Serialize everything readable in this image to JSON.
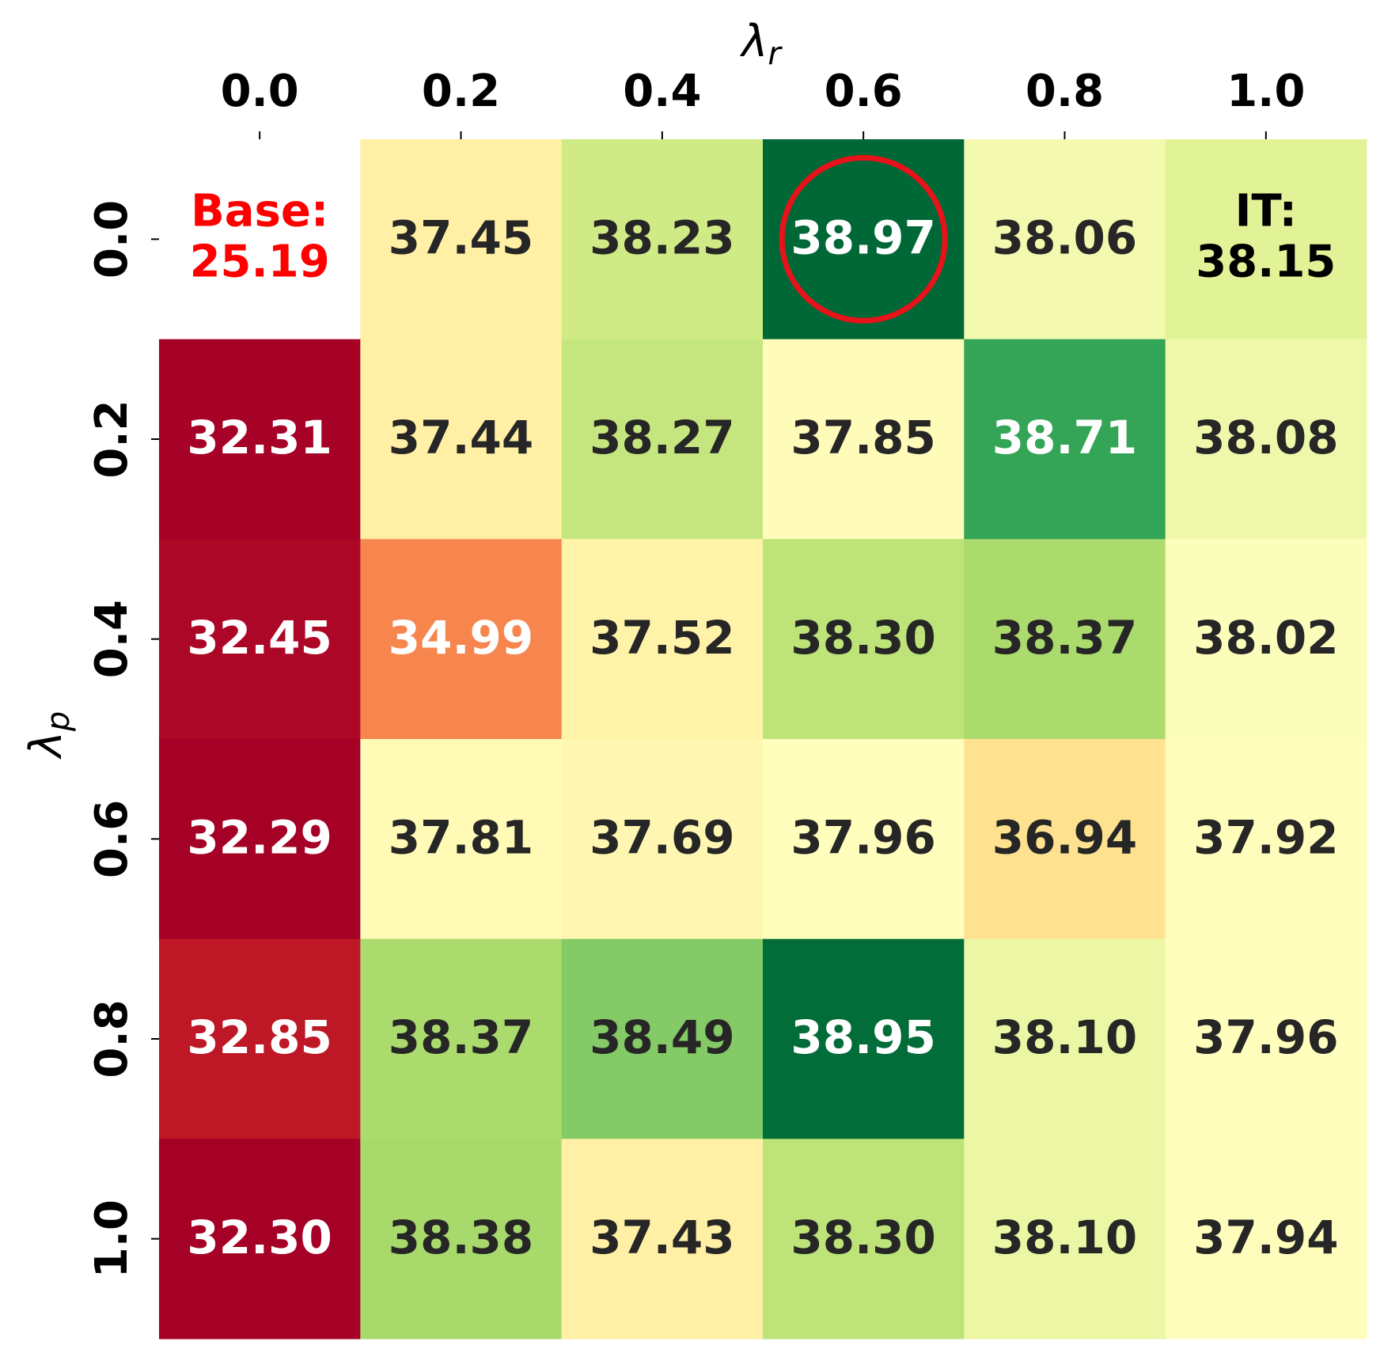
{
  "chart_data": {
    "type": "heatmap",
    "xlabel": {
      "text": "λ",
      "subscript": "r"
    },
    "ylabel": {
      "text": "λ",
      "subscript": "p"
    },
    "xcategories": [
      "0.0",
      "0.2",
      "0.4",
      "0.6",
      "0.8",
      "1.0"
    ],
    "ycategories": [
      "0.0",
      "0.2",
      "0.4",
      "0.6",
      "0.8",
      "1.0"
    ],
    "values": [
      [
        null,
        37.45,
        38.23,
        38.97,
        38.06,
        38.15
      ],
      [
        32.31,
        37.44,
        38.27,
        37.85,
        38.71,
        38.08
      ],
      [
        32.45,
        34.99,
        37.52,
        38.3,
        38.37,
        38.02
      ],
      [
        32.29,
        37.81,
        37.69,
        37.96,
        36.94,
        37.92
      ],
      [
        32.85,
        38.37,
        38.49,
        38.95,
        38.1,
        37.96
      ],
      [
        32.3,
        38.38,
        37.43,
        38.3,
        38.1,
        37.94
      ]
    ],
    "value_labels": [
      [
        null,
        "37.45",
        "38.23",
        "38.97",
        "38.06",
        "38.15"
      ],
      [
        "32.31",
        "37.44",
        "38.27",
        "37.85",
        "38.71",
        "38.08"
      ],
      [
        "32.45",
        "34.99",
        "37.52",
        "38.30",
        "38.37",
        "38.02"
      ],
      [
        "32.29",
        "37.81",
        "37.69",
        "37.96",
        "36.94",
        "37.92"
      ],
      [
        "32.85",
        "38.37",
        "38.49",
        "38.95",
        "38.10",
        "37.96"
      ],
      [
        "32.30",
        "38.38",
        "37.43",
        "38.30",
        "38.10",
        "37.94"
      ]
    ],
    "annotations": [
      {
        "text": "Base:",
        "value": 25.19,
        "x": "0.0",
        "y": "0.0",
        "color": "#ff0000"
      },
      {
        "text": "IT:",
        "x": "1.0",
        "y": "0.0",
        "color": "#000000"
      }
    ],
    "highlight": {
      "x": "0.6",
      "y": "0.0",
      "color": "#e8121a"
    },
    "colormap": [
      "#a50026",
      "#d73027",
      "#f46d43",
      "#fdae61",
      "#fee08b",
      "#ffffbf",
      "#d9ef8b",
      "#a6d96a",
      "#66bd63",
      "#1a9850",
      "#006837"
    ],
    "vmin": 32.29,
    "vcenter": 38,
    "vmax": 38.97
  }
}
